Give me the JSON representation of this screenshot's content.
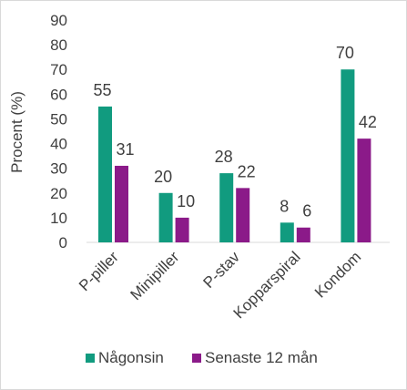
{
  "chart_data": {
    "type": "bar",
    "title": "",
    "xlabel": "",
    "ylabel": "Procent (%)",
    "ylim": [
      0,
      90
    ],
    "yticks": [
      0,
      10,
      20,
      30,
      40,
      50,
      60,
      70,
      80,
      90
    ],
    "categories": [
      "P-piller",
      "Minipiller",
      "P-stav",
      "Kopparspiral",
      "Kondom"
    ],
    "series": [
      {
        "name": "Någonsin",
        "color": "#119b7f",
        "values": [
          55,
          20,
          28,
          8,
          70
        ]
      },
      {
        "name": "Senaste 12 mån",
        "color": "#8b1a89",
        "values": [
          31,
          10,
          22,
          6,
          42
        ]
      }
    ],
    "data_labels": [
      [
        "55",
        "20",
        "28",
        "8",
        "70"
      ],
      [
        "31",
        "10",
        "22",
        "6",
        "42"
      ]
    ],
    "grid": false,
    "legend": "bottom",
    "ytick_labels": [
      "0",
      "10",
      "20",
      "30",
      "40",
      "50",
      "60",
      "70",
      "80",
      "90"
    ]
  }
}
